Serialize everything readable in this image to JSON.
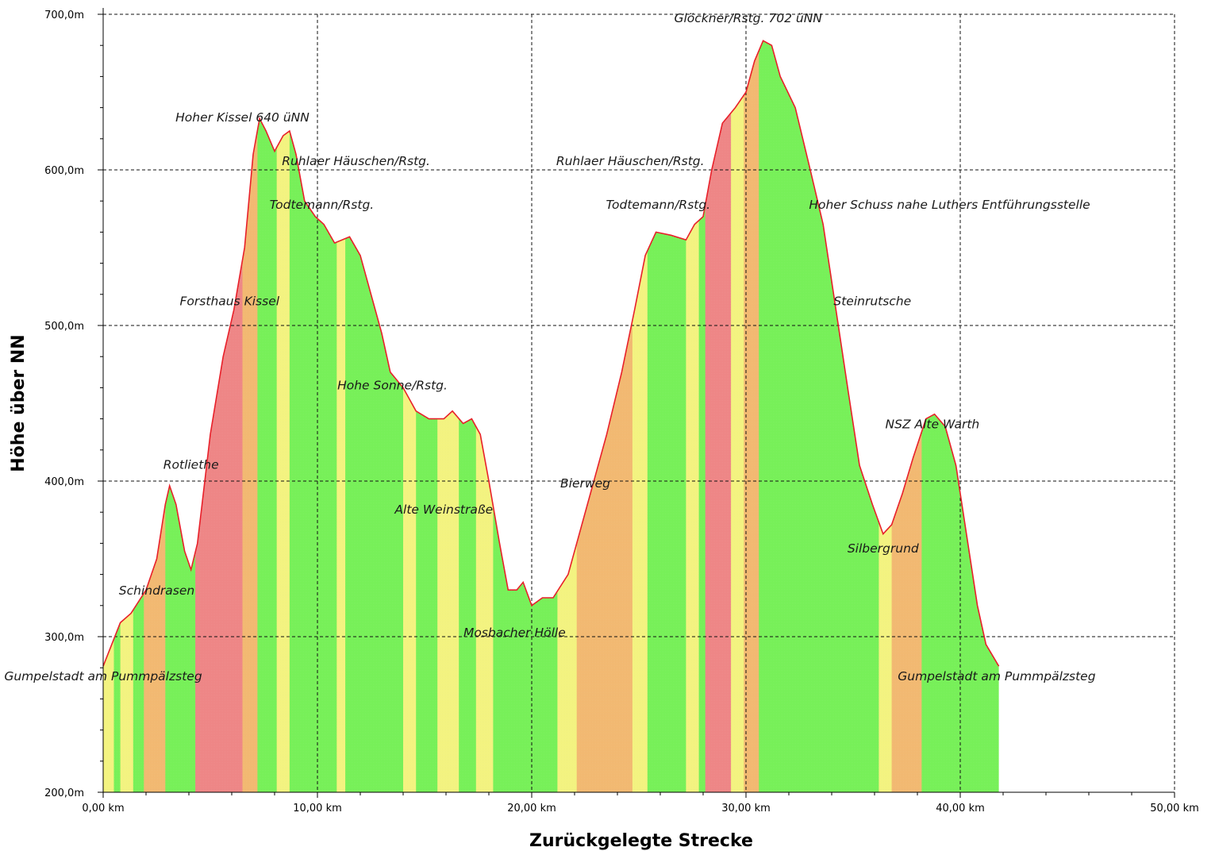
{
  "chart_data": {
    "type": "area",
    "title": "",
    "xlabel": "Zurückgelegte Strecke",
    "ylabel": "Höhe über NN",
    "xlim": [
      0,
      50
    ],
    "ylim": [
      200,
      700
    ],
    "grid": true,
    "x_ticks": [
      {
        "value": 0,
        "label": "0,00 km"
      },
      {
        "value": 10,
        "label": "10,00 km"
      },
      {
        "value": 20,
        "label": "20,00 km"
      },
      {
        "value": 30,
        "label": "30,00 km"
      },
      {
        "value": 40,
        "label": "40,00 km"
      },
      {
        "value": 50,
        "label": "50,00 km"
      }
    ],
    "y_ticks": [
      {
        "value": 200,
        "label": "200,0m"
      },
      {
        "value": 300,
        "label": "300,0m"
      },
      {
        "value": 400,
        "label": "400,0m"
      },
      {
        "value": 500,
        "label": "500,0m"
      },
      {
        "value": 600,
        "label": "600,0m"
      },
      {
        "value": 700,
        "label": "700,0m"
      }
    ],
    "profile": [
      [
        0.0,
        281
      ],
      [
        0.4,
        295
      ],
      [
        0.8,
        309
      ],
      [
        1.3,
        315
      ],
      [
        2.0,
        330
      ],
      [
        2.5,
        350
      ],
      [
        2.9,
        385
      ],
      [
        3.1,
        397
      ],
      [
        3.4,
        385
      ],
      [
        3.8,
        355
      ],
      [
        4.1,
        343
      ],
      [
        4.4,
        360
      ],
      [
        5.0,
        430
      ],
      [
        5.6,
        480
      ],
      [
        6.1,
        510
      ],
      [
        6.6,
        550
      ],
      [
        7.0,
        610
      ],
      [
        7.3,
        633
      ],
      [
        7.6,
        625
      ],
      [
        8.0,
        612
      ],
      [
        8.4,
        622
      ],
      [
        8.7,
        625
      ],
      [
        9.0,
        610
      ],
      [
        9.4,
        580
      ],
      [
        9.9,
        570
      ],
      [
        10.3,
        565
      ],
      [
        10.8,
        553
      ],
      [
        11.5,
        557
      ],
      [
        12.0,
        545
      ],
      [
        12.5,
        520
      ],
      [
        13.0,
        495
      ],
      [
        13.4,
        470
      ],
      [
        14.0,
        460
      ],
      [
        14.6,
        445
      ],
      [
        15.2,
        440
      ],
      [
        15.9,
        440
      ],
      [
        16.3,
        445
      ],
      [
        16.8,
        437
      ],
      [
        17.2,
        440
      ],
      [
        17.6,
        430
      ],
      [
        18.0,
        400
      ],
      [
        18.5,
        360
      ],
      [
        18.9,
        330
      ],
      [
        19.3,
        330
      ],
      [
        19.6,
        335
      ],
      [
        20.0,
        320
      ],
      [
        20.5,
        325
      ],
      [
        21.0,
        325
      ],
      [
        21.7,
        340
      ],
      [
        22.3,
        370
      ],
      [
        22.8,
        395
      ],
      [
        23.5,
        430
      ],
      [
        24.2,
        470
      ],
      [
        24.8,
        510
      ],
      [
        25.3,
        545
      ],
      [
        25.8,
        560
      ],
      [
        26.5,
        558
      ],
      [
        27.2,
        555
      ],
      [
        27.6,
        565
      ],
      [
        28.0,
        570
      ],
      [
        28.4,
        600
      ],
      [
        28.9,
        630
      ],
      [
        29.5,
        640
      ],
      [
        30.0,
        650
      ],
      [
        30.4,
        670
      ],
      [
        30.8,
        683
      ],
      [
        31.2,
        680
      ],
      [
        31.6,
        660
      ],
      [
        32.3,
        640
      ],
      [
        33.0,
        600
      ],
      [
        33.6,
        565
      ],
      [
        34.2,
        510
      ],
      [
        34.8,
        455
      ],
      [
        35.3,
        410
      ],
      [
        35.9,
        385
      ],
      [
        36.4,
        366
      ],
      [
        36.8,
        372
      ],
      [
        37.3,
        392
      ],
      [
        37.8,
        415
      ],
      [
        38.4,
        440
      ],
      [
        38.8,
        443
      ],
      [
        39.3,
        435
      ],
      [
        39.8,
        410
      ],
      [
        40.3,
        365
      ],
      [
        40.8,
        320
      ],
      [
        41.2,
        295
      ],
      [
        41.8,
        281
      ]
    ],
    "gradient_colors": {
      "green": "#66ee44",
      "yellow": "#f1f170",
      "orange": "#f0b060",
      "red": "#ec7777"
    },
    "gradient_bands": [
      [
        0.0,
        0.5,
        "yellow"
      ],
      [
        0.5,
        0.8,
        "green"
      ],
      [
        0.8,
        1.4,
        "yellow"
      ],
      [
        1.4,
        1.9,
        "green"
      ],
      [
        1.9,
        2.9,
        "orange"
      ],
      [
        2.9,
        3.3,
        "green"
      ],
      [
        3.3,
        4.3,
        "green"
      ],
      [
        4.3,
        6.5,
        "red"
      ],
      [
        6.5,
        7.2,
        "orange"
      ],
      [
        7.2,
        8.1,
        "green"
      ],
      [
        8.1,
        8.7,
        "yellow"
      ],
      [
        8.7,
        9.5,
        "green"
      ],
      [
        9.5,
        10.9,
        "green"
      ],
      [
        10.9,
        11.3,
        "yellow"
      ],
      [
        11.3,
        14.0,
        "green"
      ],
      [
        14.0,
        14.6,
        "yellow"
      ],
      [
        14.6,
        15.6,
        "green"
      ],
      [
        15.6,
        16.6,
        "yellow"
      ],
      [
        16.6,
        17.4,
        "green"
      ],
      [
        17.4,
        18.2,
        "yellow"
      ],
      [
        18.2,
        21.2,
        "green"
      ],
      [
        21.2,
        22.1,
        "yellow"
      ],
      [
        22.1,
        24.7,
        "orange"
      ],
      [
        24.7,
        25.4,
        "yellow"
      ],
      [
        25.4,
        27.2,
        "green"
      ],
      [
        27.2,
        27.8,
        "yellow"
      ],
      [
        27.8,
        28.1,
        "green"
      ],
      [
        28.1,
        29.3,
        "red"
      ],
      [
        29.3,
        29.9,
        "yellow"
      ],
      [
        29.9,
        30.6,
        "orange"
      ],
      [
        30.6,
        36.2,
        "green"
      ],
      [
        36.2,
        36.8,
        "yellow"
      ],
      [
        36.8,
        38.2,
        "orange"
      ],
      [
        38.2,
        41.8,
        "green"
      ]
    ],
    "annotations": [
      {
        "text": "Gumpelstadt  am Pummpälzsteg",
        "x": 0.0,
        "y": 272
      },
      {
        "text": "Schindrasen",
        "x": 2.5,
        "y": 327
      },
      {
        "text": "Rotliethe",
        "x": 4.1,
        "y": 408
      },
      {
        "text": "Forsthaus Kissel",
        "x": 5.9,
        "y": 513
      },
      {
        "text": "Hoher Kissel 640 üNN",
        "x": 6.5,
        "y": 631
      },
      {
        "text": "Ruhlaer Häuschen/Rstg.",
        "x": 11.8,
        "y": 603
      },
      {
        "text": "Todtemann/Rstg.",
        "x": 10.2,
        "y": 575
      },
      {
        "text": "Hohe Sonne/Rstg.",
        "x": 13.5,
        "y": 459
      },
      {
        "text": "Alte Weinstraße",
        "x": 15.9,
        "y": 379
      },
      {
        "text": "Mosbacher Hölle",
        "x": 19.2,
        "y": 300
      },
      {
        "text": "Bierweg",
        "x": 22.5,
        "y": 396
      },
      {
        "text": "Ruhlaer Häuschen/Rstg.",
        "x": 24.6,
        "y": 603
      },
      {
        "text": "Todtemann/Rstg.",
        "x": 25.9,
        "y": 575
      },
      {
        "text": "Glöckner/Rstg. 702 üNN",
        "x": 30.1,
        "y": 695
      },
      {
        "text": "Hoher Schuss nahe Luthers Entführungsstelle",
        "x": 39.5,
        "y": 575
      },
      {
        "text": "Steinrutsche",
        "x": 35.9,
        "y": 513
      },
      {
        "text": "NSZ Alte Warth",
        "x": 38.7,
        "y": 434
      },
      {
        "text": "Silbergrund",
        "x": 36.4,
        "y": 354
      },
      {
        "text": "Gumpelstadt am Pummpälzsteg",
        "x": 41.7,
        "y": 272
      }
    ]
  }
}
